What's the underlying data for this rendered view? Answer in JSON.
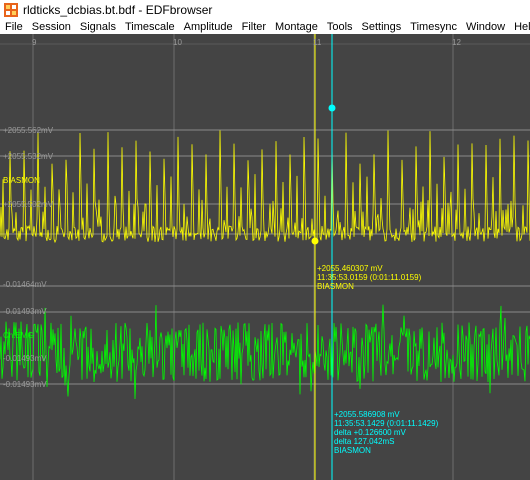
{
  "window": {
    "title": "rldticks_dcbias.bt.bdf - EDFbrowser",
    "icon": "edfbrowser-app-icon"
  },
  "menu": {
    "items": [
      "File",
      "Session",
      "Signals",
      "Timescale",
      "Amplitude",
      "Filter",
      "Montage",
      "Tools",
      "Settings",
      "Timesync",
      "Window",
      "Help"
    ]
  },
  "ruler": {
    "ticks": [
      "9",
      "10",
      "11",
      "12"
    ]
  },
  "colors": {
    "background": "#444444",
    "grid": "#8a8a8a",
    "biasmon": "#ffff00",
    "emg": "#00ff00",
    "cursor": "#00ffff"
  },
  "signals": [
    {
      "name": "BIASMON",
      "scale_labels": [
        "+2055.562mV",
        "+2055.532mV",
        "+2055.502mV",
        "-0.01464mV"
      ]
    },
    {
      "name": "Ch:EMG",
      "scale_labels": [
        "-0.01493mV",
        "-0.01493mV",
        "-0.01493mV"
      ]
    }
  ],
  "cursor1": {
    "value": "+2055.460307 mV",
    "time": "11:35:53.0159 (0:01:11.0159)",
    "signal": "BIASMON"
  },
  "cursor2": {
    "value": "+2055.586908 mV",
    "time": "11:35:53.1429 (0:01:11.1429)",
    "delta_value": "delta +0.126600 mV",
    "delta_time": "delta 127.042mS",
    "signal": "BIASMON"
  }
}
